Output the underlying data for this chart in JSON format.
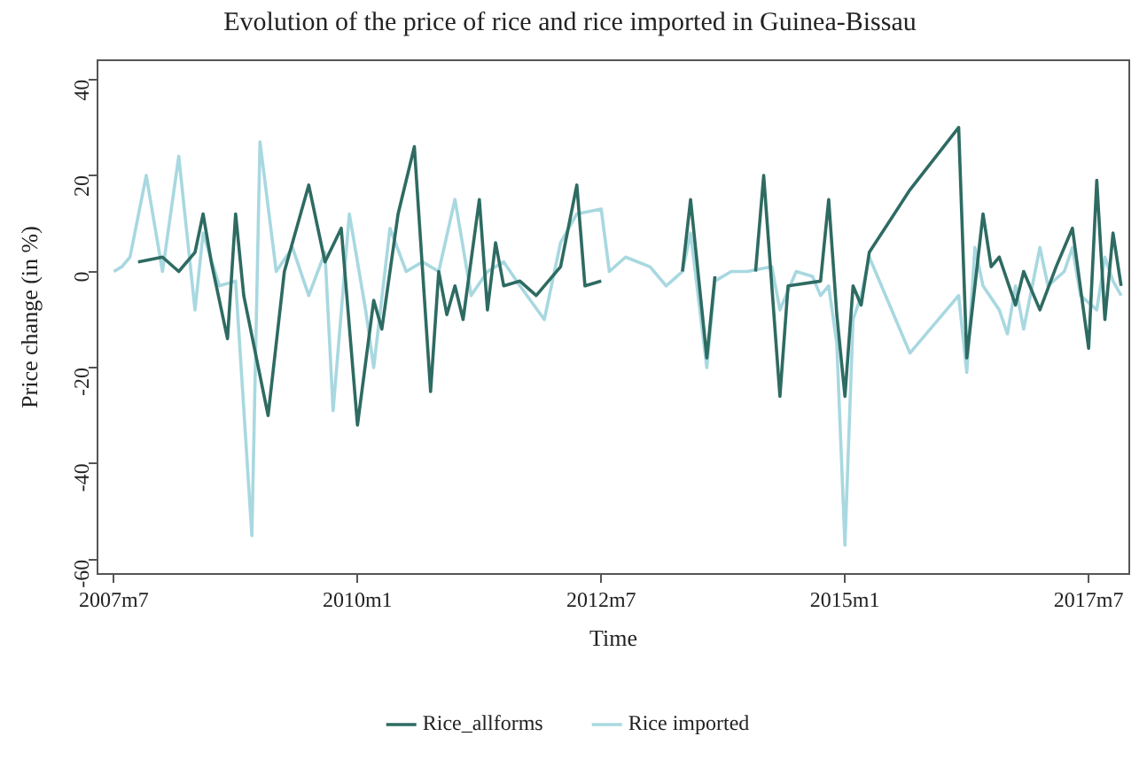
{
  "chart_data": {
    "type": "line",
    "title": "Evolution of the price of rice and rice imported in Guinea-Bissau",
    "xlabel": "Time",
    "ylabel": "Price change (in %)",
    "xlim": [
      "2007-05",
      "2017-12"
    ],
    "xticks": [
      {
        "value": "2007-07",
        "label": "2007m7"
      },
      {
        "value": "2010-01",
        "label": "2010m1"
      },
      {
        "value": "2012-07",
        "label": "2012m7"
      },
      {
        "value": "2015-01",
        "label": "2015m1"
      },
      {
        "value": "2017-07",
        "label": "2017m7"
      }
    ],
    "ylim": [
      -63,
      44
    ],
    "yticks": [
      -60,
      -40,
      -20,
      0,
      20,
      40
    ],
    "grid": false,
    "legend": "bottom",
    "marker": "none",
    "line_style": "solid",
    "series": [
      {
        "name": "Rice_allforms",
        "color": "#2e6b62",
        "x": [
          "2007-10",
          "2008-01",
          "2008-03",
          "2008-05",
          "2008-06",
          "2008-07",
          "2008-09",
          "2008-10",
          "2008-11",
          "2009-02",
          "2009-04",
          "2009-07",
          "2009-09",
          "2009-11",
          "2010-01",
          "2010-03",
          "2010-04",
          "2010-06",
          "2010-08",
          "2010-10",
          "2010-11",
          "2010-12",
          "2011-01",
          "2011-02",
          "2011-04",
          "2011-05",
          "2011-06",
          "2011-07",
          "2011-09",
          "2011-11",
          "2012-02",
          "2012-04",
          "2012-05",
          "2012-07",
          "2012-08",
          "2013-05",
          "2013-06",
          "2013-08",
          "2013-09",
          "2013-10",
          "2014-02",
          "2014-03",
          "2014-05",
          "2014-06",
          "2014-10",
          "2014-11",
          "2014-12",
          "2015-01",
          "2015-02",
          "2015-03",
          "2015-04",
          "2015-09",
          "2016-03",
          "2016-04",
          "2016-06",
          "2016-07",
          "2016-08",
          "2016-10",
          "2016-11",
          "2017-01",
          "2017-03",
          "2017-05",
          "2017-07",
          "2017-08",
          "2017-09",
          "2017-10",
          "2017-11"
        ],
        "values": [
          2,
          3,
          0,
          4,
          12,
          2,
          -14,
          12,
          -5,
          -30,
          0,
          18,
          2,
          9,
          -32,
          -6,
          -12,
          12,
          26,
          -25,
          0,
          -9,
          -3,
          -10,
          15,
          -8,
          6,
          -3,
          -2,
          -5,
          1,
          18,
          -3,
          -2,
          null,
          0,
          15,
          -18,
          -1,
          null,
          0,
          20,
          -26,
          -3,
          -2,
          15,
          -9,
          -26,
          -3,
          -7,
          4,
          17,
          30,
          -18,
          12,
          1,
          3,
          -7,
          0,
          -8,
          1,
          9,
          -16,
          19,
          -10,
          8,
          -3
        ]
      },
      {
        "name": "Rice imported",
        "color": "#a8d8e0",
        "x": [
          "2007-07",
          "2007-08",
          "2007-09",
          "2007-11",
          "2008-01",
          "2008-03",
          "2008-05",
          "2008-06",
          "2008-08",
          "2008-10",
          "2008-12",
          "2009-01",
          "2009-03",
          "2009-05",
          "2009-07",
          "2009-09",
          "2009-10",
          "2009-12",
          "2010-02",
          "2010-03",
          "2010-05",
          "2010-07",
          "2010-09",
          "2010-11",
          "2011-01",
          "2011-03",
          "2011-05",
          "2011-07",
          "2011-09",
          "2011-12",
          "2012-02",
          "2012-04",
          "2012-07",
          "2012-08",
          "2012-10",
          "2013-01",
          "2013-03",
          "2013-05",
          "2013-06",
          "2013-08",
          "2013-09",
          "2013-11",
          "2014-01",
          "2014-04",
          "2014-05",
          "2014-07",
          "2014-09",
          "2014-10",
          "2014-11",
          "2014-12",
          "2015-01",
          "2015-02",
          "2015-03",
          "2015-04",
          "2015-09",
          "2016-03",
          "2016-04",
          "2016-05",
          "2016-06",
          "2016-08",
          "2016-09",
          "2016-10",
          "2016-11",
          "2017-01",
          "2017-02",
          "2017-04",
          "2017-05",
          "2017-06",
          "2017-08",
          "2017-09",
          "2017-10",
          "2017-11"
        ],
        "values": [
          0,
          1,
          3,
          20,
          0,
          24,
          -8,
          8,
          -3,
          -2,
          -55,
          27,
          0,
          5,
          -5,
          4,
          -29,
          12,
          -8,
          -20,
          9,
          0,
          2,
          0,
          15,
          -5,
          0,
          2,
          -3,
          -10,
          6,
          12,
          13,
          0,
          3,
          1,
          -3,
          0,
          8,
          -20,
          -2,
          0,
          0,
          1,
          -8,
          0,
          -1,
          -5,
          -3,
          -15,
          -57,
          -10,
          -5,
          3,
          -17,
          -5,
          -21,
          5,
          -3,
          -8,
          -13,
          -3,
          -12,
          5,
          -3,
          0,
          5,
          -5,
          -8,
          3,
          -2,
          -5
        ]
      }
    ]
  }
}
